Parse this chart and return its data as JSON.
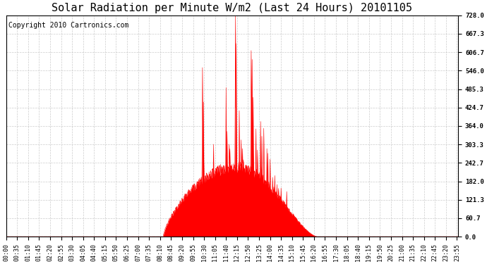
{
  "title": "Solar Radiation per Minute W/m2 (Last 24 Hours) 20101105",
  "copyright": "Copyright 2010 Cartronics.com",
  "background_color": "#ffffff",
  "plot_bg_color": "#ffffff",
  "line_color": "#ff0000",
  "fill_color": "#ff0000",
  "grid_color": "#c0c0c0",
  "ytick_labels": [
    0.0,
    60.7,
    121.3,
    182.0,
    242.7,
    303.3,
    364.0,
    424.7,
    485.3,
    546.0,
    606.7,
    667.3,
    728.0
  ],
  "ymax": 728.0,
  "ymin": 0.0,
  "num_minutes": 1440,
  "title_fontsize": 11,
  "copyright_fontsize": 7,
  "rise_minute": 500,
  "peak_minute": 735,
  "set_minute": 990,
  "base_peak": 230
}
